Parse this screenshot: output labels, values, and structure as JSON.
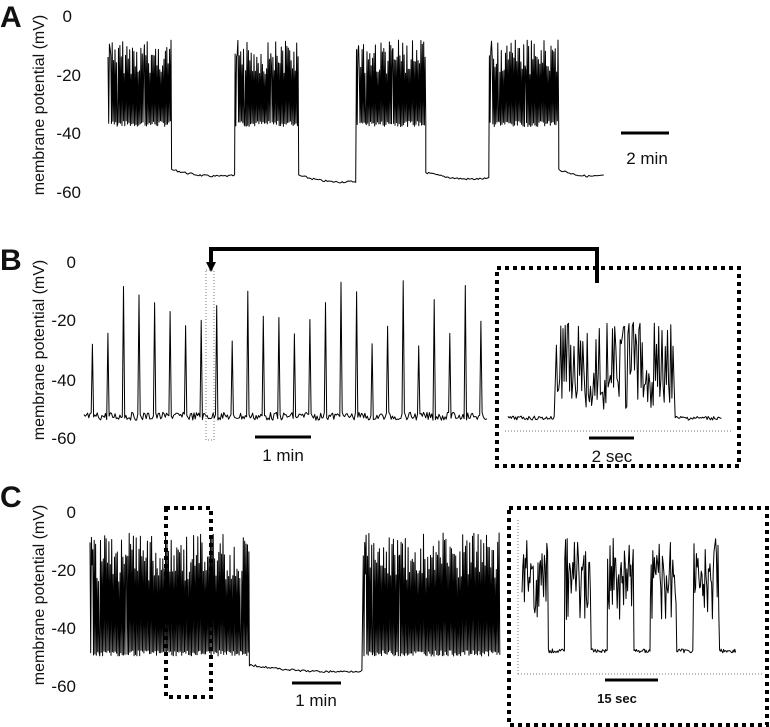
{
  "chart_data": [
    {
      "panel": "A",
      "type": "line",
      "ylabel": "membrane potential (mV)",
      "yticks": [
        "0",
        "-20",
        "-40",
        "-60"
      ],
      "ylim": [
        -60,
        0
      ],
      "scale_bar": "2 min",
      "series": [
        {
          "segments": [
            {
              "pattern": "burst",
              "length": 11,
              "base": -38,
              "top": -8
            },
            {
              "pattern": "rest",
              "length": 11,
              "level": -55
            },
            {
              "pattern": "burst",
              "length": 11,
              "base": -38,
              "top": -8
            },
            {
              "pattern": "rest",
              "length": 10,
              "level": -57
            },
            {
              "pattern": "burst",
              "length": 12,
              "base": -38,
              "top": -8
            },
            {
              "pattern": "rest",
              "length": 11,
              "level": -56
            },
            {
              "pattern": "burst",
              "length": 12,
              "base": -38,
              "top": -8
            },
            {
              "pattern": "rest",
              "length": 8,
              "level": -55
            }
          ]
        }
      ]
    },
    {
      "panel": "B",
      "type": "line",
      "ylabel": "membrane potential (mV)",
      "yticks": [
        "0",
        "-20",
        "-40",
        "-60"
      ],
      "ylim": [
        -60,
        0
      ],
      "scale_bar": "1 min",
      "spike_count": 26,
      "spike_peak_range": [
        -30,
        -6
      ],
      "baseline": -52,
      "inset": {
        "scale_bar": "2 sec",
        "baseline": -52,
        "burst_peak": -17
      }
    },
    {
      "panel": "C",
      "type": "line",
      "ylabel": "membrane potential (mV)",
      "yticks": [
        "0",
        "-20",
        "-40",
        "-60"
      ],
      "ylim": [
        -60,
        0
      ],
      "scale_bar": "1 min",
      "series": [
        {
          "segments": [
            {
              "pattern": "burst",
              "length": 7,
              "base": -48,
              "top": -7
            },
            {
              "pattern": "rest",
              "length": 5,
              "level": -53
            },
            {
              "pattern": "burst",
              "length": 6,
              "base": -48,
              "top": -7
            }
          ]
        }
      ],
      "inset": {
        "scale_bar": "15 sec",
        "bursts": 5,
        "baseline": -51,
        "burst_top": -7
      }
    }
  ]
}
